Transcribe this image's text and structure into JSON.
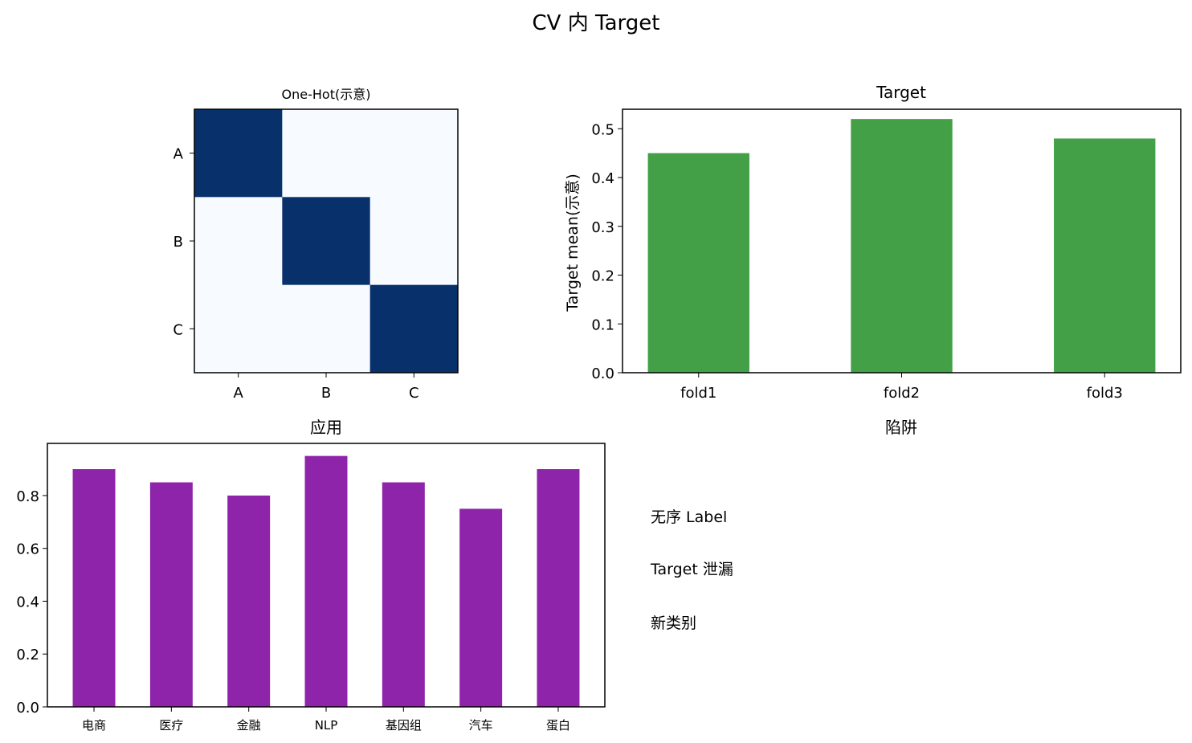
{
  "figure": {
    "suptitle": "CV 内 Target"
  },
  "chart_data": [
    {
      "type": "heatmap",
      "title": "One-Hot(示意)",
      "row_labels": [
        "A",
        "B",
        "C"
      ],
      "col_labels": [
        "A",
        "B",
        "C"
      ],
      "values": [
        [
          1,
          0,
          0
        ],
        [
          0,
          1,
          0
        ],
        [
          0,
          0,
          1
        ]
      ],
      "colors": {
        "high": "#08306b",
        "low": "#f7fbff"
      }
    },
    {
      "type": "bar",
      "title": "Target",
      "categories": [
        "fold1",
        "fold2",
        "fold3"
      ],
      "values": [
        0.45,
        0.52,
        0.48
      ],
      "ylabel": "Target mean(示意)",
      "ylim": [
        0,
        0.54
      ],
      "yticks": [
        "0.0",
        "0.1",
        "0.2",
        "0.3",
        "0.4",
        "0.5"
      ],
      "color": "#43a047"
    },
    {
      "type": "bar",
      "title": "应用",
      "categories": [
        "电商",
        "医疗",
        "金融",
        "NLP",
        "基因组",
        "汽车",
        "蛋白"
      ],
      "values": [
        0.9,
        0.85,
        0.8,
        0.95,
        0.85,
        0.75,
        0.9
      ],
      "ylim": [
        0,
        0.9975
      ],
      "yticks": [
        "0.0",
        "0.2",
        "0.4",
        "0.6",
        "0.8"
      ],
      "color": "#8e24aa"
    }
  ],
  "pitfalls": {
    "title": "陷阱",
    "items": [
      "无序 Label",
      "Target 泄漏",
      "新类别"
    ]
  }
}
